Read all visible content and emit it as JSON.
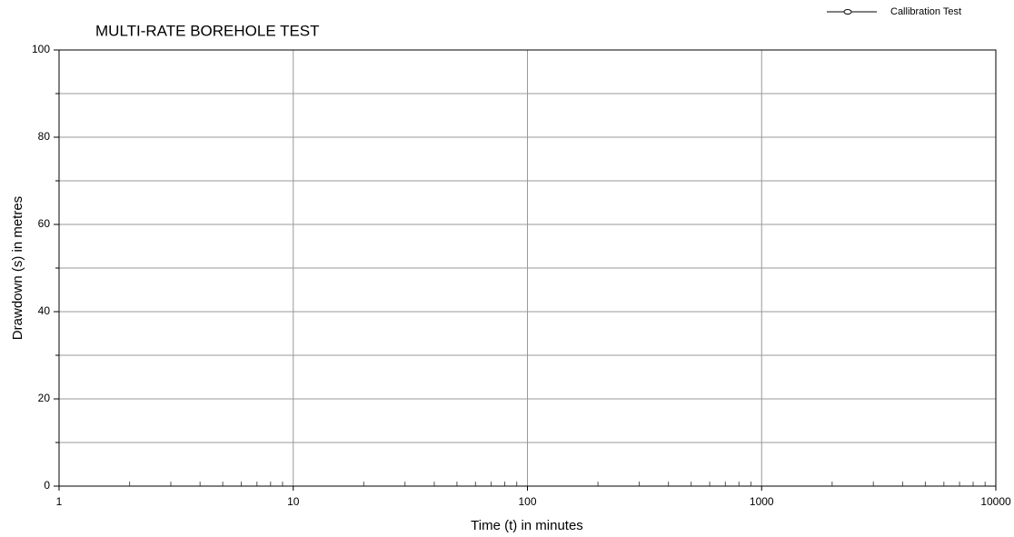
{
  "chart_data": {
    "type": "line",
    "title": "MULTI-RATE BOREHOLE TEST",
    "xlabel": "Time (t) in minutes",
    "ylabel": "Drawdown (s) in metres",
    "x": [],
    "series": [
      {
        "name": "Callibration Test",
        "color": "#000000",
        "values": []
      }
    ],
    "xlog": true,
    "xlim": [
      1,
      10000
    ],
    "xticks": [
      1,
      10,
      100,
      1000,
      10000
    ],
    "xminor": [
      2,
      3,
      4,
      5,
      6,
      7,
      8,
      9,
      20,
      30,
      40,
      50,
      60,
      70,
      80,
      90,
      200,
      300,
      400,
      500,
      600,
      700,
      800,
      900,
      2000,
      3000,
      4000,
      5000,
      6000,
      7000,
      8000,
      9000
    ],
    "ylim": [
      0,
      100
    ],
    "yticks": [
      0,
      20,
      40,
      60,
      80,
      100
    ],
    "yminor": [
      10,
      30,
      50,
      70,
      90
    ],
    "grid": true,
    "legend": "top right"
  }
}
